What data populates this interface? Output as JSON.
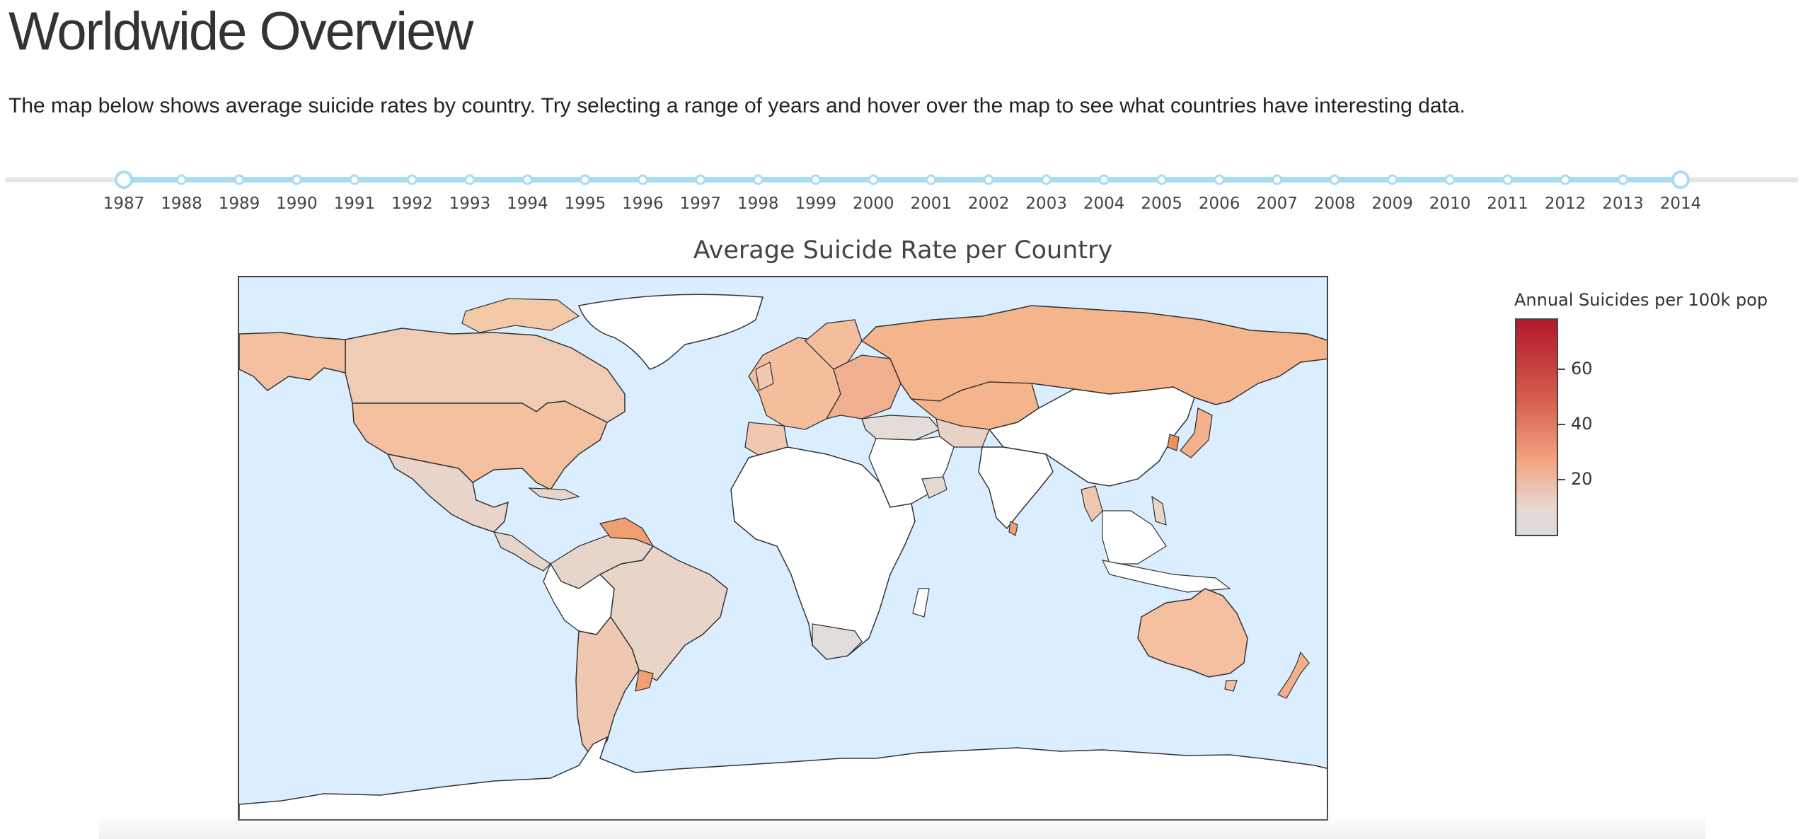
{
  "header": {
    "title": "Worldwide Overview",
    "description": "The map below shows average suicide rates by country. Try selecting a range of years and hover over the map to see what countries have interesting data."
  },
  "year_slider": {
    "years": [
      1987,
      1988,
      1989,
      1990,
      1991,
      1992,
      1993,
      1994,
      1995,
      1996,
      1997,
      1998,
      1999,
      2000,
      2001,
      2002,
      2003,
      2004,
      2005,
      2006,
      2007,
      2008,
      2009,
      2010,
      2011,
      2012,
      2013,
      2014
    ],
    "selected_start": 1987,
    "selected_end": 2014,
    "track_color": "#e6e6e6",
    "active_color": "#a8dcf3"
  },
  "map": {
    "title": "Average Suicide Rate per Country",
    "ocean_color": "#dbeeff",
    "no_data_color": "#ffffff",
    "regions": [
      {
        "name": "Canada",
        "value": 15
      },
      {
        "name": "United States",
        "value": 18
      },
      {
        "name": "Mexico",
        "value": 6
      },
      {
        "name": "Brazil",
        "value": 8
      },
      {
        "name": "Argentina",
        "value": 14
      },
      {
        "name": "Chile",
        "value": 15
      },
      {
        "name": "Russia",
        "value": 28
      },
      {
        "name": "Kazakhstan",
        "value": 24
      },
      {
        "name": "Japan",
        "value": 26
      },
      {
        "name": "South Korea",
        "value": 32
      },
      {
        "name": "Australia",
        "value": 17
      },
      {
        "name": "New Zealand",
        "value": 22
      },
      {
        "name": "South Africa",
        "value": 2
      },
      {
        "name": "Greenland",
        "value": null
      },
      {
        "name": "China",
        "value": null
      },
      {
        "name": "India",
        "value": null
      }
    ]
  },
  "colorbar": {
    "title": "Annual Suicides per 100k pop",
    "ticks": [
      20,
      40,
      60
    ],
    "min": 0,
    "max": 78
  }
}
